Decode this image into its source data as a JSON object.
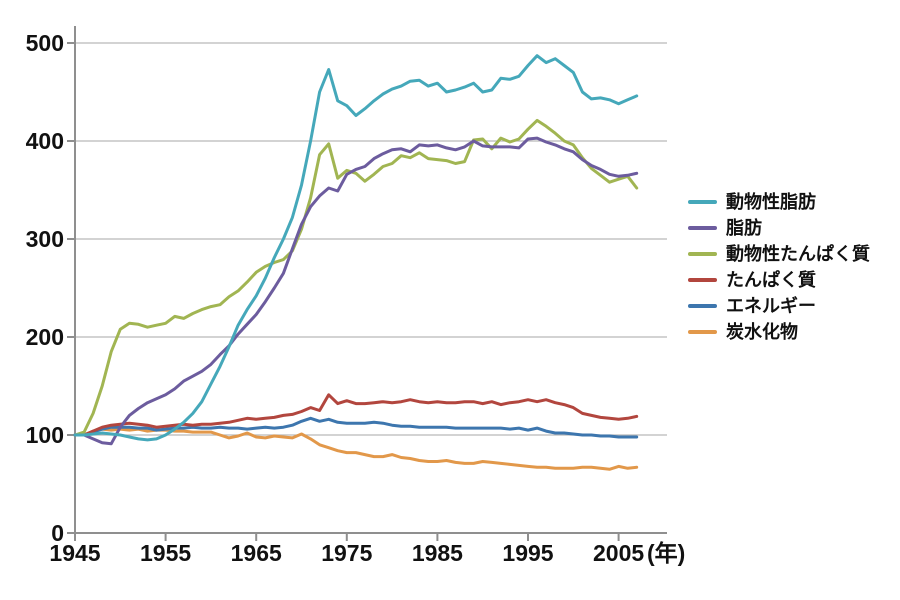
{
  "chart": {
    "y_axis": {
      "tick_labels": [
        "0",
        "100",
        "200",
        "300",
        "400",
        "500"
      ]
    },
    "x_axis": {
      "tick_labels": [
        "1945",
        "1955",
        "1965",
        "1975",
        "1985",
        "1995",
        "2005"
      ],
      "unit_label": "(年)"
    },
    "colors": {
      "grid": "#b9b9b9",
      "axis": "#8f8f8f",
      "text": "#111111"
    }
  },
  "chart_data": {
    "type": "line",
    "title": "",
    "xlabel_unit": "(年)",
    "xlim": [
      1945,
      2010.3
    ],
    "ylim": [
      0,
      500
    ],
    "grid": true,
    "legend_position": "right",
    "x_ticks": [
      1945,
      1955,
      1965,
      1975,
      1985,
      1995,
      2005
    ],
    "y_ticks": [
      0,
      100,
      200,
      300,
      400,
      500
    ],
    "x": [
      1945,
      1946,
      1947,
      1948,
      1949,
      1950,
      1951,
      1952,
      1953,
      1954,
      1955,
      1956,
      1957,
      1958,
      1959,
      1960,
      1961,
      1962,
      1963,
      1964,
      1965,
      1966,
      1967,
      1968,
      1969,
      1970,
      1971,
      1972,
      1973,
      1974,
      1975,
      1976,
      1977,
      1978,
      1979,
      1980,
      1981,
      1982,
      1983,
      1984,
      1985,
      1986,
      1987,
      1988,
      1989,
      1990,
      1991,
      1992,
      1993,
      1994,
      1995,
      1996,
      1997,
      1998,
      1999,
      2000,
      2001,
      2002,
      2003,
      2004,
      2005,
      2006,
      2007
    ],
    "series": [
      {
        "name": "動物性脂肪",
        "color": "#45a8ba",
        "values": [
          100,
          100,
          101,
          102,
          101,
          100,
          98,
          96,
          95,
          96,
          100,
          106,
          113,
          122,
          134,
          152,
          170,
          190,
          212,
          228,
          242,
          260,
          281,
          300,
          322,
          355,
          400,
          450,
          473,
          441,
          436,
          426,
          433,
          441,
          448,
          453,
          456,
          461,
          462,
          456,
          459,
          450,
          452,
          455,
          459,
          450,
          452,
          464,
          463,
          466,
          477,
          487,
          480,
          484,
          477,
          470,
          450,
          443,
          444,
          442,
          438,
          442,
          446
        ]
      },
      {
        "name": "脂肪",
        "color": "#6c5c9e",
        "values": [
          100,
          100,
          96,
          92,
          91,
          108,
          120,
          127,
          133,
          137,
          141,
          147,
          155,
          160,
          165,
          172,
          182,
          191,
          203,
          213,
          223,
          236,
          250,
          265,
          290,
          315,
          333,
          344,
          352,
          349,
          366,
          371,
          374,
          382,
          387,
          391,
          392,
          389,
          396,
          395,
          396,
          393,
          391,
          394,
          400,
          395,
          394,
          394,
          394,
          393,
          402,
          403,
          399,
          396,
          392,
          389,
          381,
          375,
          371,
          366,
          364,
          365,
          367
        ]
      },
      {
        "name": "動物性たんぱく質",
        "color": "#a1b552",
        "values": [
          100,
          103,
          122,
          150,
          185,
          208,
          214,
          213,
          210,
          212,
          214,
          221,
          219,
          224,
          228,
          231,
          233,
          241,
          247,
          256,
          266,
          272,
          276,
          279,
          288,
          310,
          342,
          386,
          397,
          362,
          370,
          367,
          359,
          366,
          374,
          377,
          385,
          383,
          388,
          382,
          381,
          380,
          377,
          379,
          401,
          402,
          392,
          403,
          399,
          402,
          412,
          421,
          415,
          408,
          400,
          396,
          383,
          372,
          365,
          358,
          361,
          364,
          352
        ]
      },
      {
        "name": "たんぱく質",
        "color": "#b2463e",
        "values": [
          100,
          100,
          104,
          108,
          110,
          111,
          112,
          111,
          110,
          108,
          109,
          110,
          111,
          110,
          111,
          111,
          112,
          113,
          115,
          117,
          116,
          117,
          118,
          120,
          121,
          124,
          128,
          125,
          141,
          132,
          135,
          132,
          132,
          133,
          134,
          133,
          134,
          136,
          134,
          133,
          134,
          133,
          133,
          134,
          134,
          132,
          134,
          131,
          133,
          134,
          136,
          134,
          136,
          133,
          131,
          128,
          122,
          120,
          118,
          117,
          116,
          117,
          119
        ]
      },
      {
        "name": "エネルギー",
        "color": "#3d76ae",
        "values": [
          100,
          100,
          103,
          106,
          108,
          108,
          108,
          107,
          107,
          105,
          106,
          107,
          107,
          108,
          107,
          107,
          108,
          107,
          107,
          106,
          107,
          108,
          107,
          108,
          110,
          114,
          117,
          114,
          116,
          113,
          112,
          112,
          112,
          113,
          112,
          110,
          109,
          109,
          108,
          108,
          108,
          108,
          107,
          107,
          107,
          107,
          107,
          107,
          106,
          107,
          105,
          107,
          104,
          102,
          102,
          101,
          100,
          100,
          99,
          99,
          98,
          98,
          98
        ]
      },
      {
        "name": "炭水化物",
        "color": "#e2984a",
        "values": [
          100,
          100,
          104,
          106,
          105,
          106,
          105,
          106,
          104,
          105,
          105,
          104,
          104,
          103,
          103,
          103,
          100,
          97,
          99,
          102,
          98,
          97,
          99,
          98,
          97,
          101,
          96,
          90,
          87,
          84,
          82,
          82,
          80,
          78,
          78,
          80,
          77,
          76,
          74,
          73,
          73,
          74,
          72,
          71,
          71,
          73,
          72,
          71,
          70,
          69,
          68,
          67,
          67,
          66,
          66,
          66,
          67,
          67,
          66,
          65,
          68,
          66,
          67
        ]
      }
    ]
  }
}
